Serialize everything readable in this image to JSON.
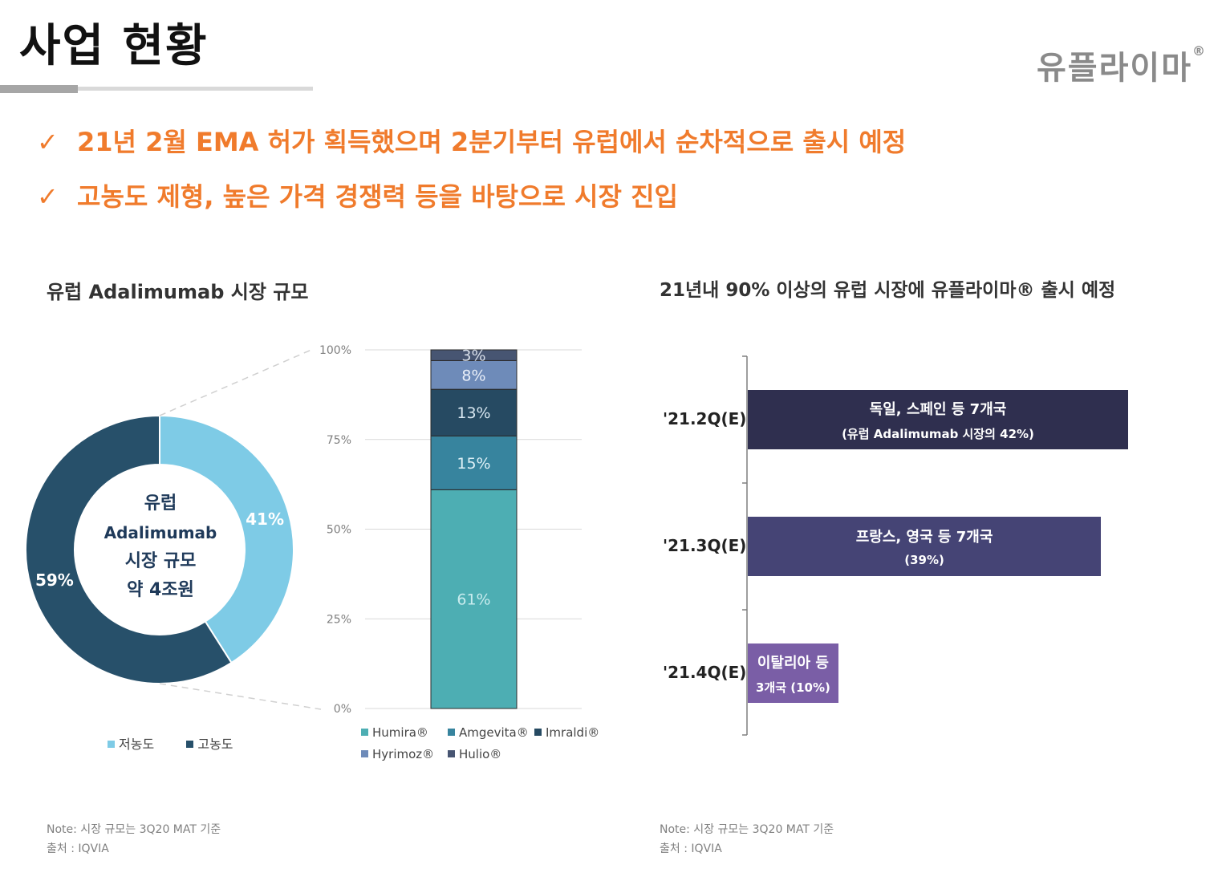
{
  "header": {
    "title": "사업 현황",
    "logo_text": "유플라이마",
    "logo_mark": "®"
  },
  "bullets": [
    {
      "check": "✓",
      "text": "21년 2월 EMA 허가 획득했으며 2분기부터 유럽에서 순차적으로 출시 예정"
    },
    {
      "check": "✓",
      "text": "고농도 제형, 높은 가격 경쟁력 등을 바탕으로 시장 진입"
    }
  ],
  "left_panel": {
    "title": "유럽 Adalimumab 시장 규모",
    "donut_center": {
      "line1": "유럽",
      "line2": "Adalimumab",
      "line3": "시장 규모",
      "line4": "약 4조원"
    },
    "legend": [
      {
        "label": "저농도",
        "color": "#7ecbe6"
      },
      {
        "label": "고농도",
        "color": "#27506a"
      }
    ],
    "note": "Note: 시장 규모는 3Q20 MAT 기준",
    "source": "출처 : IQVIA"
  },
  "right_panel": {
    "title": "21년내 90% 이상의 유럽 시장에 유플라이마® 출시 예정",
    "timeline": [
      {
        "label": "'21.2Q(E)",
        "line1": "독일, 스페인 등 7개국",
        "line2": "(유럽 Adalimumab 시장의 42%)",
        "share": 42,
        "color": "#2f2f4f"
      },
      {
        "label": "'21.3Q(E)",
        "line1": "프랑스, 영국 등 7개국",
        "line2": "(39%)",
        "share": 39,
        "color": "#454475"
      },
      {
        "label": "'21.4Q(E)",
        "line1": "이탈리아 등",
        "line2": "3개국 (10%)",
        "share": 10,
        "color": "#7a5ea6"
      }
    ],
    "note": "Note: 시장 규모는 3Q20 MAT 기준",
    "source": "출처 : IQVIA"
  },
  "chart_data": [
    {
      "type": "pie",
      "title": "유럽 Adalimumab 시장 규모",
      "categories": [
        "저농도",
        "고농도"
      ],
      "values": [
        41,
        59
      ],
      "value_labels": [
        "41%",
        "59%"
      ],
      "colors": [
        "#7ecbe6",
        "#27506a"
      ]
    },
    {
      "type": "bar",
      "stacked": true,
      "categories": [
        ""
      ],
      "series": [
        {
          "name": "Humira®",
          "values": [
            61
          ],
          "label": "61%",
          "color": "#4daeb3",
          "text_color": "#c9ecee"
        },
        {
          "name": "Amgevita®",
          "values": [
            15
          ],
          "label": "15%",
          "color": "#37849e",
          "text_color": "#dff1f7"
        },
        {
          "name": "Imraldi®",
          "values": [
            13
          ],
          "label": "13%",
          "color": "#264a62",
          "text_color": "#d7e6f0"
        },
        {
          "name": "Hyrimoz®",
          "values": [
            8
          ],
          "label": "8%",
          "color": "#6e8bb9",
          "text_color": "#e8eef8"
        },
        {
          "name": "Hulio®",
          "values": [
            3
          ],
          "label": "3%",
          "color": "#475572",
          "text_color": "#d9dfea"
        }
      ],
      "yticks": [
        "0%",
        "25%",
        "50%",
        "75%",
        "100%"
      ],
      "ylim": [
        0,
        100
      ]
    }
  ]
}
